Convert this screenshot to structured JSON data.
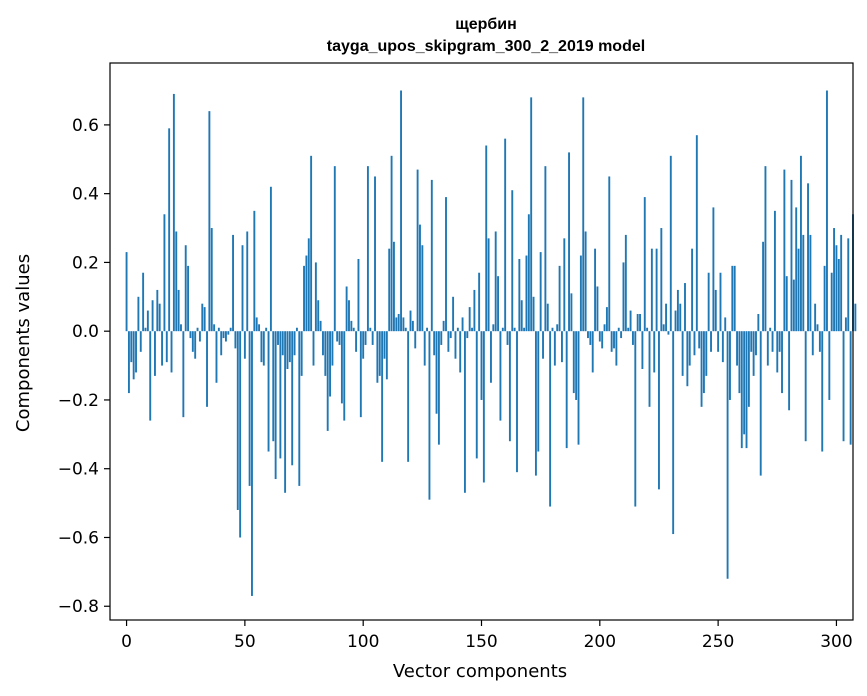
{
  "chart_data": {
    "type": "bar",
    "title_line1": "щербин",
    "title_line2": "tayga_upos_skipgram_300_2_2019 model",
    "xlabel": "Vector components",
    "ylabel": "Components values",
    "xlim": [
      -7,
      307
    ],
    "ylim": [
      -0.84,
      0.78
    ],
    "xticks": [
      0,
      50,
      100,
      150,
      200,
      250,
      300
    ],
    "xtick_labels": [
      "0",
      "50",
      "100",
      "150",
      "200",
      "250",
      "300"
    ],
    "yticks": [
      -0.8,
      -0.6,
      -0.4,
      -0.2,
      0.0,
      0.2,
      0.4,
      0.6
    ],
    "ytick_labels": [
      "−0.8",
      "−0.6",
      "−0.4",
      "−0.2",
      "0.0",
      "0.2",
      "0.4",
      "0.6"
    ],
    "grid": false,
    "bar_color": "#1f77b4",
    "values": [
      0.23,
      -0.18,
      -0.09,
      -0.14,
      -0.12,
      0.1,
      -0.06,
      0.17,
      0.01,
      0.06,
      -0.26,
      0.09,
      -0.13,
      0.12,
      0.08,
      -0.1,
      0.34,
      -0.09,
      0.59,
      -0.12,
      0.69,
      0.29,
      0.12,
      0.02,
      -0.25,
      0.25,
      0.19,
      -0.02,
      -0.06,
      -0.08,
      0.01,
      -0.03,
      0.08,
      0.07,
      -0.22,
      0.64,
      0.3,
      0.02,
      -0.15,
      0.01,
      -0.07,
      -0.02,
      -0.03,
      -0.01,
      0.01,
      0.28,
      -0.05,
      -0.52,
      -0.6,
      0.25,
      -0.08,
      0.29,
      -0.45,
      -0.77,
      0.35,
      0.04,
      0.02,
      -0.09,
      -0.1,
      0.01,
      -0.35,
      0.42,
      -0.32,
      -0.43,
      -0.04,
      -0.37,
      -0.07,
      -0.47,
      -0.11,
      -0.09,
      -0.39,
      -0.07,
      0.01,
      -0.45,
      -0.13,
      0.19,
      0.22,
      0.27,
      0.51,
      -0.1,
      0.2,
      0.09,
      0.03,
      -0.07,
      -0.13,
      -0.29,
      -0.19,
      -0.1,
      0.48,
      -0.03,
      -0.04,
      -0.21,
      -0.26,
      0.13,
      0.09,
      0.03,
      0.01,
      -0.06,
      0.21,
      -0.25,
      -0.08,
      -0.04,
      0.48,
      0.01,
      -0.04,
      0.45,
      -0.15,
      -0.13,
      -0.38,
      -0.08,
      -0.14,
      0.24,
      0.51,
      0.26,
      0.04,
      0.05,
      0.7,
      0.04,
      0.01,
      -0.38,
      0.06,
      0.03,
      -0.05,
      0.47,
      0.31,
      0.25,
      -0.1,
      0.01,
      -0.49,
      0.44,
      -0.07,
      -0.24,
      -0.33,
      -0.04,
      0.03,
      0.39,
      -0.06,
      -0.02,
      0.1,
      -0.08,
      0.01,
      -0.12,
      0.04,
      -0.47,
      -0.02,
      0.07,
      0.01,
      0.12,
      -0.37,
      0.17,
      -0.2,
      -0.44,
      0.54,
      0.27,
      -0.15,
      0.02,
      0.29,
      0.16,
      -0.26,
      0.01,
      0.56,
      -0.04,
      -0.32,
      0.41,
      0.01,
      -0.41,
      0.21,
      0.09,
      0.01,
      0.22,
      0.34,
      0.68,
      0.1,
      -0.42,
      -0.35,
      0.23,
      -0.08,
      0.48,
      0.08,
      -0.51,
      0.01,
      -0.1,
      0.02,
      0.19,
      -0.09,
      0.27,
      -0.34,
      0.52,
      0.11,
      -0.18,
      -0.2,
      -0.33,
      0.22,
      0.68,
      0.29,
      -0.02,
      -0.04,
      -0.12,
      0.24,
      0.13,
      -0.03,
      -0.05,
      0.02,
      0.07,
      0.45,
      -0.06,
      -0.05,
      -0.1,
      0.01,
      -0.02,
      0.2,
      0.28,
      0.01,
      0.06,
      -0.04,
      -0.51,
      0.05,
      0.05,
      -0.11,
      0.39,
      0.01,
      -0.22,
      0.24,
      -0.12,
      0.24,
      -0.46,
      0.3,
      0.02,
      0.08,
      -0.01,
      0.51,
      -0.59,
      0.06,
      0.12,
      0.08,
      -0.13,
      0.14,
      -0.16,
      -0.1,
      0.24,
      -0.07,
      0.57,
      -0.05,
      -0.22,
      -0.18,
      -0.13,
      0.17,
      -0.06,
      0.36,
      0.12,
      -0.06,
      0.17,
      -0.09,
      0.04,
      -0.72,
      -0.2,
      0.19,
      0.19,
      -0.1,
      -0.18,
      -0.34,
      -0.3,
      -0.34,
      -0.22,
      -0.06,
      -0.13,
      -0.07,
      0.05,
      -0.42,
      0.26,
      0.48,
      -0.1,
      0.01,
      -0.06,
      0.35,
      -0.12,
      -0.06,
      -0.18,
      0.47,
      0.16,
      -0.23,
      0.44,
      0.15,
      0.36,
      0.24,
      0.51,
      0.28,
      -0.32,
      0.43,
      0.28,
      -0.07,
      0.08,
      0.02,
      -0.06,
      -0.35,
      0.19,
      0.7,
      -0.2,
      0.17,
      0.3,
      0.25,
      0.21,
      0.28,
      -0.32,
      0.04,
      0.27,
      -0.33,
      0.34,
      0.08
    ]
  }
}
